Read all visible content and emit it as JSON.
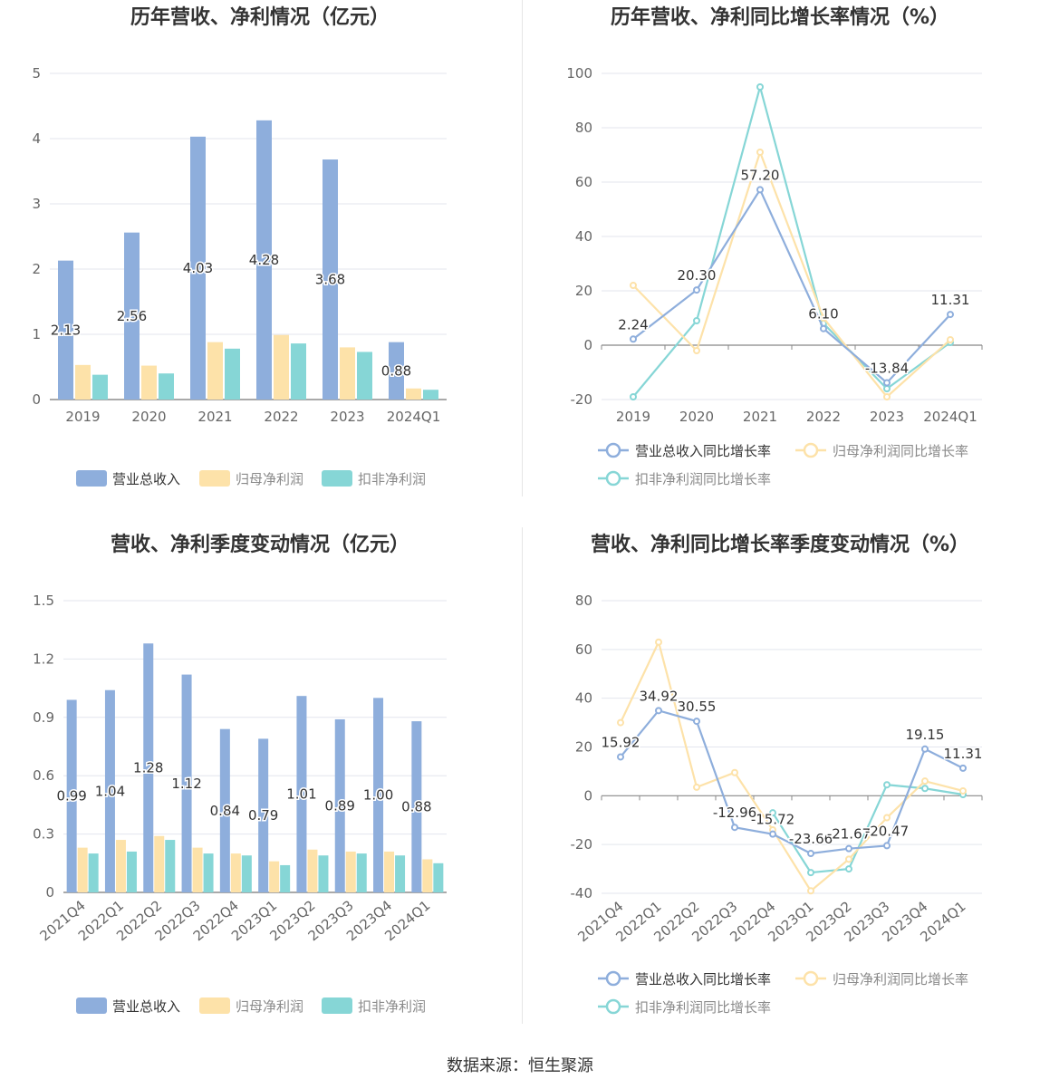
{
  "source": "数据来源：恒生聚源",
  "colors": {
    "revenue": "#8eaedc",
    "net": "#fde2a9",
    "deduct": "#86d6d6"
  },
  "chart_data": [
    {
      "type": "bar",
      "title": "历年营收、净利情况（亿元）",
      "categories": [
        "2019",
        "2020",
        "2021",
        "2022",
        "2023",
        "2024Q1"
      ],
      "ylim": [
        0,
        5
      ],
      "yticks": [
        "0",
        "1",
        "2",
        "3",
        "4",
        "5"
      ],
      "series": [
        {
          "name": "营业总收入",
          "values": [
            2.13,
            2.56,
            4.03,
            4.28,
            3.68,
            0.88
          ],
          "labels": [
            "2.13",
            "2.56",
            "4.03",
            "4.28",
            "3.68",
            "0.88"
          ]
        },
        {
          "name": "归母净利润",
          "values": [
            0.53,
            0.52,
            0.88,
            0.99,
            0.8,
            0.17
          ]
        },
        {
          "name": "扣非净利润",
          "values": [
            0.38,
            0.4,
            0.78,
            0.86,
            0.73,
            0.15
          ]
        }
      ],
      "legend": "bottom"
    },
    {
      "type": "line",
      "title": "历年营收、净利同比增长率情况（%）",
      "categories": [
        "2019",
        "2020",
        "2021",
        "2022",
        "2023",
        "2024Q1"
      ],
      "ylim": [
        -20,
        100
      ],
      "yticks": [
        "-20",
        "0",
        "20",
        "40",
        "60",
        "80",
        "100"
      ],
      "series": [
        {
          "name": "营业总收入同比增长率",
          "values": [
            2.24,
            20.3,
            57.2,
            6.1,
            -13.84,
            11.31
          ],
          "labels": [
            "2.24",
            "20.30",
            "57.20",
            "6.10",
            "-13.84",
            "11.31"
          ]
        },
        {
          "name": "归母净利润同比增长率",
          "values": [
            22.0,
            -2.0,
            71.0,
            10.0,
            -19.0,
            2.0
          ]
        },
        {
          "name": "扣非净利润同比增长率",
          "values": [
            -19.0,
            9.0,
            95.0,
            8.0,
            -16.0,
            1.0
          ]
        }
      ],
      "legend": "bottom"
    },
    {
      "type": "bar",
      "title": "营收、净利季度变动情况（亿元）",
      "categories": [
        "2021Q4",
        "2022Q1",
        "2022Q2",
        "2022Q3",
        "2022Q4",
        "2023Q1",
        "2023Q2",
        "2023Q3",
        "2023Q4",
        "2024Q1"
      ],
      "ylim": [
        0,
        1.5
      ],
      "yticks": [
        "0",
        "0.3",
        "0.6",
        "0.9",
        "1.2",
        "1.5"
      ],
      "series": [
        {
          "name": "营业总收入",
          "values": [
            0.99,
            1.04,
            1.28,
            1.12,
            0.84,
            0.79,
            1.01,
            0.89,
            1.0,
            0.88
          ],
          "labels": [
            "0.99",
            "1.04",
            "1.28",
            "1.12",
            "0.84",
            "0.79",
            "1.01",
            "0.89",
            "1.00",
            "0.88"
          ]
        },
        {
          "name": "归母净利润",
          "values": [
            0.23,
            0.27,
            0.29,
            0.23,
            0.2,
            0.16,
            0.22,
            0.21,
            0.21,
            0.17
          ]
        },
        {
          "name": "扣非净利润",
          "values": [
            0.2,
            0.21,
            0.27,
            0.2,
            0.19,
            0.14,
            0.19,
            0.2,
            0.19,
            0.15
          ]
        }
      ],
      "legend": "bottom"
    },
    {
      "type": "line",
      "title": "营收、净利同比增长率季度变动情况（%）",
      "categories": [
        "2021Q4",
        "2022Q1",
        "2022Q2",
        "2022Q3",
        "2022Q4",
        "2023Q1",
        "2023Q2",
        "2023Q3",
        "2023Q4",
        "2024Q1"
      ],
      "ylim": [
        -40,
        80
      ],
      "yticks": [
        "-40",
        "-20",
        "0",
        "20",
        "40",
        "60",
        "80"
      ],
      "series": [
        {
          "name": "营业总收入同比增长率",
          "values": [
            15.92,
            34.92,
            30.55,
            -12.96,
            -15.72,
            -23.66,
            -21.67,
            -20.47,
            19.15,
            11.31
          ],
          "labels": [
            "15.92",
            "34.92",
            "30.55",
            "-12.96",
            "-15.72",
            "-23.66",
            "-21.67",
            "-20.47",
            "19.15",
            "11.31"
          ]
        },
        {
          "name": "归母净利润同比增长率",
          "values": [
            30.0,
            63.0,
            3.5,
            9.5,
            -14.0,
            -39.0,
            -26.0,
            -9.0,
            6.0,
            2.0
          ]
        },
        {
          "name": "扣非净利润同比增长率",
          "values": [
            null,
            null,
            null,
            null,
            -7.0,
            -31.5,
            -30.0,
            4.5,
            3.0,
            0.5
          ]
        }
      ],
      "legend": "bottom"
    }
  ]
}
